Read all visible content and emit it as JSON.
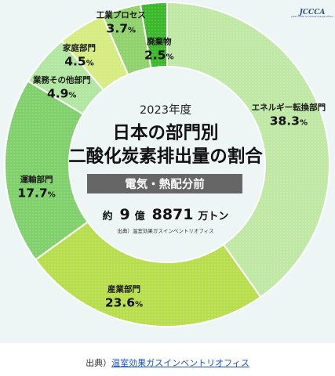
{
  "chart_data": {
    "type": "pie",
    "donut": true,
    "year_label": "2023年度",
    "title_line1": "日本の部門別",
    "title_line2": "二酸化炭素排出量の割合",
    "subtitle": "電気・熱配分前",
    "total": {
      "prefix": "約",
      "oku_value": "9",
      "oku_unit": "億",
      "man_value": "8871",
      "man_unit": "万トン"
    },
    "source_note": "出典）温室効果ガスインベントリオフィス",
    "unit": "%",
    "slices": [
      {
        "label": "エネルギー転換部門",
        "value": 38.3,
        "display": "38.3",
        "color": "#bfe8a4"
      },
      {
        "label": "産業部門",
        "value": 23.6,
        "display": "23.6",
        "color": "#b8dd4c"
      },
      {
        "label": "運輸部門",
        "value": 17.7,
        "display": "17.7",
        "color": "#7fd06b"
      },
      {
        "label": "業務その他部門",
        "value": 4.9,
        "display": "4.9",
        "color": "#b1e6a1"
      },
      {
        "label": "家庭部門",
        "value": 4.5,
        "display": "4.5",
        "color": "#d5ec80"
      },
      {
        "label": "工業プロセス",
        "value": 3.7,
        "display": "3.7",
        "color": "#8fd16a"
      },
      {
        "label": "廃棄物",
        "value": 2.5,
        "display": "2.5",
        "color": "#3ab82a"
      }
    ]
  },
  "logo": {
    "text": "JCCCA",
    "subtext": "Japan Center for Climate Change Actions"
  },
  "footer": {
    "prefix": "出典）",
    "link_text": "温室効果ガスインベントリオフィス"
  }
}
